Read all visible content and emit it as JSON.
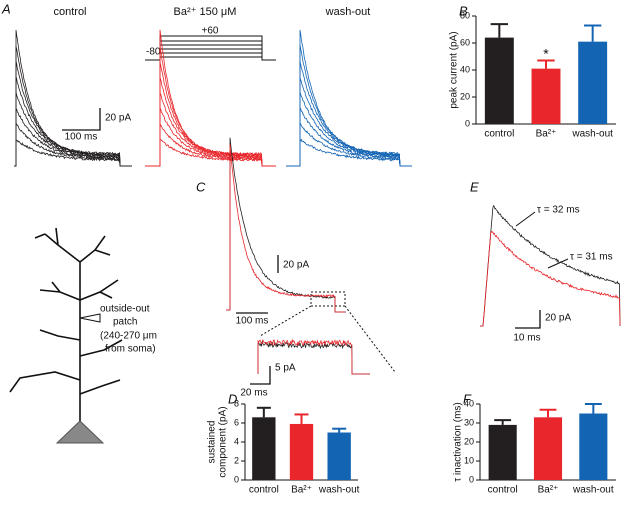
{
  "panels": {
    "a": {
      "label": "A",
      "conditions": [
        "control",
        "Ba²⁺ 150 μM",
        "wash-out"
      ],
      "step_high": "+60",
      "step_low": "-80",
      "scale_y": "20 pA",
      "scale_x": "100 ms"
    },
    "c": {
      "label": "C",
      "scale_y": "20 pA",
      "scale_x": "100 ms",
      "inset_scale_y": "5 pA",
      "inset_scale_x": "20 ms"
    },
    "e": {
      "label": "E",
      "tau_control": "τ = 32 ms",
      "tau_ba": "τ = 31 ms",
      "scale_y": "20 pA",
      "scale_x": "10 ms"
    },
    "neuron": {
      "lines": [
        "outside-out",
        "patch",
        "(240-270 μm",
        "from soma)"
      ]
    }
  },
  "chart_data": [
    {
      "type": "bar",
      "panel": "B",
      "ylabel": [
        "peak current (pA)"
      ],
      "categories": [
        "control",
        "Ba²⁺",
        "wash-out"
      ],
      "values": [
        64,
        41,
        61
      ],
      "errors": [
        10,
        6,
        12
      ],
      "colors": [
        "#231f20",
        "#e8262b",
        "#1464b4"
      ],
      "ylim": [
        0,
        80
      ],
      "yticks": [
        0,
        20,
        40,
        60,
        80
      ],
      "annotation": "*"
    },
    {
      "type": "bar",
      "panel": "D",
      "ylabel": [
        "sustained",
        "component (pA)"
      ],
      "categories": [
        "control",
        "Ba²⁺",
        "wash-out"
      ],
      "values": [
        6.6,
        5.9,
        5.0
      ],
      "errors": [
        1.0,
        1.0,
        0.4
      ],
      "colors": [
        "#231f20",
        "#e8262b",
        "#1464b4"
      ],
      "ylim": [
        0,
        8
      ],
      "yticks": [
        0,
        2,
        4,
        6,
        8
      ]
    },
    {
      "type": "bar",
      "panel": "F",
      "ylabel": [
        "τ inactivation (ms)"
      ],
      "categories": [
        "control",
        "Ba²⁺",
        "wash-out"
      ],
      "values": [
        29,
        33,
        35
      ],
      "errors": [
        2.5,
        4,
        5
      ],
      "colors": [
        "#231f20",
        "#e8262b",
        "#1464b4"
      ],
      "ylim": [
        0,
        40
      ],
      "yticks": [
        0,
        10,
        20,
        30,
        40
      ]
    }
  ]
}
